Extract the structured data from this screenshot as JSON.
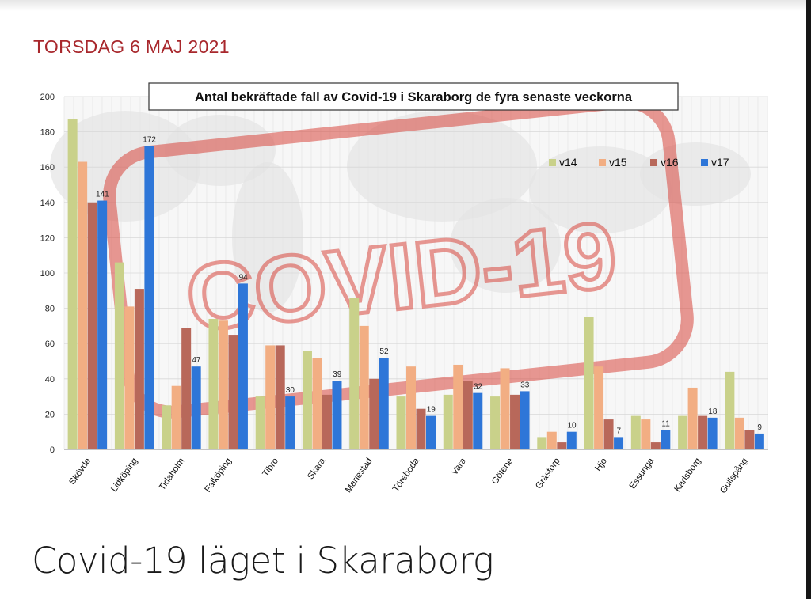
{
  "article": {
    "date": "TORSDAG 6 MAJ 2021",
    "headline": "Covid-19 läget i Skaraborg"
  },
  "watermark": {
    "text": "COVID-19"
  },
  "colors": {
    "v14": "#c9d18a",
    "v15": "#f2ae83",
    "v16": "#b8685a",
    "v17": "#2e76d8",
    "date_red": "#a8272c",
    "watermark_red": "#d9483f"
  },
  "chart_data": {
    "type": "bar",
    "title": "Antal bekräftade fall av Covid-19 i Skaraborg de fyra senaste veckorna",
    "xlabel": "",
    "ylabel": "",
    "ylim": [
      0,
      200
    ],
    "yticks": [
      0,
      20,
      40,
      60,
      80,
      100,
      120,
      140,
      160,
      180,
      200
    ],
    "grid": true,
    "legend_position": "top-right",
    "categories": [
      "Skövde",
      "Lidköping",
      "Tidaholm",
      "Falköping",
      "Tibro",
      "Skara",
      "Mariestad",
      "Töreboda",
      "Vara",
      "Götene",
      "Grästorp",
      "Hjo",
      "Essunga",
      "Karlsborg",
      "Gullspång"
    ],
    "series": [
      {
        "name": "v14",
        "color": "#c9d18a",
        "values": [
          187,
          106,
          25,
          74,
          30,
          56,
          86,
          30,
          31,
          30,
          7,
          75,
          19,
          19,
          44
        ]
      },
      {
        "name": "v15",
        "color": "#f2ae83",
        "values": [
          163,
          81,
          36,
          73,
          59,
          52,
          70,
          47,
          48,
          46,
          10,
          47,
          17,
          35,
          18
        ]
      },
      {
        "name": "v16",
        "color": "#b8685a",
        "values": [
          140,
          91,
          69,
          65,
          59,
          31,
          40,
          23,
          39,
          31,
          4,
          17,
          4,
          19,
          11
        ]
      },
      {
        "name": "v17",
        "color": "#2e76d8",
        "values": [
          141,
          172,
          47,
          94,
          30,
          39,
          52,
          19,
          32,
          33,
          10,
          7,
          11,
          18,
          9
        ]
      }
    ],
    "data_labels": {
      "series": "v17",
      "values": [
        "141",
        "172",
        "47",
        "94",
        "30",
        "39",
        "52",
        "19",
        "32",
        "33",
        "10",
        "7",
        "11",
        "18",
        "9"
      ]
    }
  }
}
